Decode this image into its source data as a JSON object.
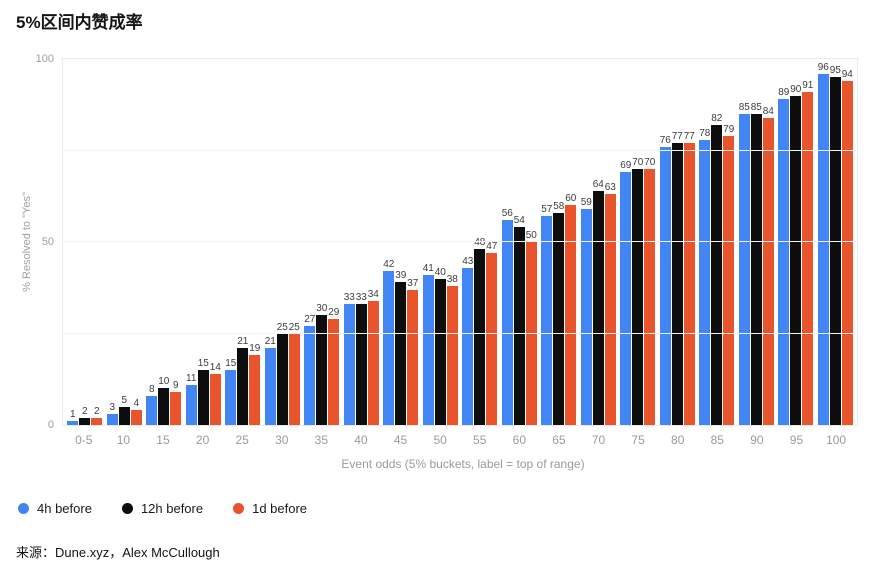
{
  "title": "5%区间内赞成率",
  "source": "来源：Dune.xyz，Alex McCullough",
  "chart_data": {
    "type": "bar",
    "title": "5%区间内赞成率",
    "xlabel": "Event odds (5% buckets, label = top of range)",
    "ylabel": "% Resolved to \"Yes\"",
    "ylim": [
      0,
      100
    ],
    "yticks": [
      0,
      50,
      100
    ],
    "grid": true,
    "legend_position": "bottom-left",
    "categories": [
      "0-5",
      "10",
      "15",
      "20",
      "25",
      "30",
      "35",
      "40",
      "45",
      "50",
      "55",
      "60",
      "65",
      "70",
      "75",
      "80",
      "85",
      "90",
      "95",
      "100"
    ],
    "series": [
      {
        "name": "4h before",
        "color": "#4285f4",
        "values": [
          1,
          3,
          8,
          11,
          15,
          21,
          27,
          33,
          42,
          41,
          43,
          56,
          57,
          59,
          69,
          76,
          78,
          85,
          89,
          96
        ]
      },
      {
        "name": "12h before",
        "color": "#0d0d0d",
        "values": [
          2,
          5,
          10,
          15,
          21,
          25,
          30,
          33,
          39,
          40,
          48,
          54,
          58,
          64,
          70,
          77,
          82,
          85,
          90,
          95
        ]
      },
      {
        "name": "1d before",
        "color": "#e8542c",
        "values": [
          2,
          4,
          9,
          14,
          19,
          25,
          29,
          34,
          37,
          38,
          47,
          50,
          60,
          63,
          70,
          77,
          79,
          84,
          91,
          94
        ]
      }
    ]
  }
}
